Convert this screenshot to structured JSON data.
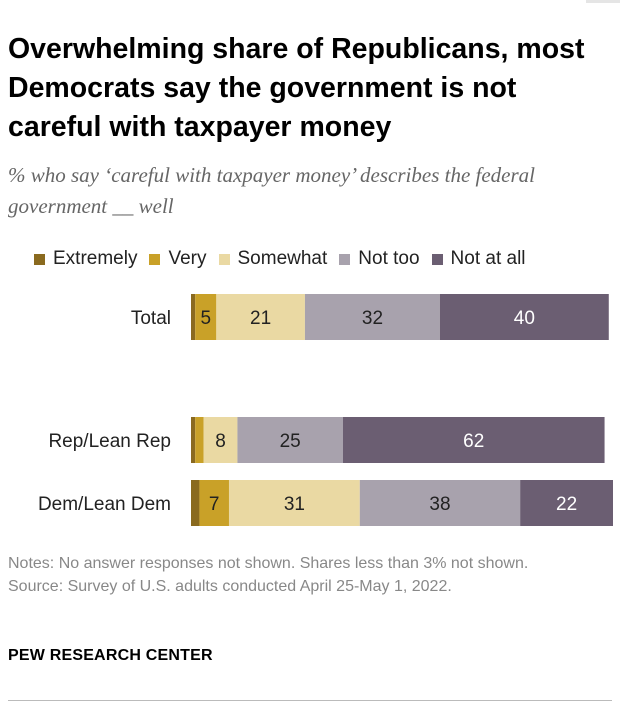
{
  "header": {
    "title": "Overwhelming share of Republicans, most Democrats say the government is not careful with taxpayer money",
    "subtitle": "% who say ‘careful with taxpayer money’ describes the federal government __ well"
  },
  "legend": [
    {
      "label": "Extremely",
      "color": "#8a6a1f"
    },
    {
      "label": "Very",
      "color": "#c9a128"
    },
    {
      "label": "Somewhat",
      "color": "#ead9a3"
    },
    {
      "label": "Not too",
      "color": "#a8a2ad"
    },
    {
      "label": "Not at all",
      "color": "#6b5e72"
    }
  ],
  "chart_data": {
    "type": "bar",
    "orientation": "horizontal",
    "stacked": true,
    "categories": [
      "Total",
      "Rep/Lean Rep",
      "Dem/Lean Dem"
    ],
    "series": [
      {
        "name": "Extremely",
        "values": [
          1,
          1,
          2
        ],
        "labels": [
          "",
          "",
          ""
        ]
      },
      {
        "name": "Very",
        "values": [
          5,
          2,
          7
        ],
        "labels": [
          "5",
          "",
          "7"
        ]
      },
      {
        "name": "Somewhat",
        "values": [
          21,
          8,
          31
        ],
        "labels": [
          "21",
          "8",
          "31"
        ]
      },
      {
        "name": "Not too",
        "values": [
          32,
          25,
          38
        ],
        "labels": [
          "32",
          "25",
          "38"
        ]
      },
      {
        "name": "Not at all",
        "values": [
          40,
          62,
          22
        ],
        "labels": [
          "40",
          "62",
          "22"
        ]
      }
    ],
    "colors": [
      "#8a6a1f",
      "#c9a128",
      "#ead9a3",
      "#a8a2ad",
      "#6b5e72"
    ],
    "label_colors": [
      "#ffffff",
      "#222222",
      "#222222",
      "#222222",
      "#ffffff"
    ],
    "xlim": [
      0,
      100
    ],
    "grid": false,
    "legend_position": "top"
  },
  "footer": {
    "notes": "Notes: No answer responses not shown. Shares less than 3% not shown.",
    "source": "Source: Survey of U.S. adults conducted April 25-May 1, 2022.",
    "brand": "PEW RESEARCH CENTER"
  }
}
